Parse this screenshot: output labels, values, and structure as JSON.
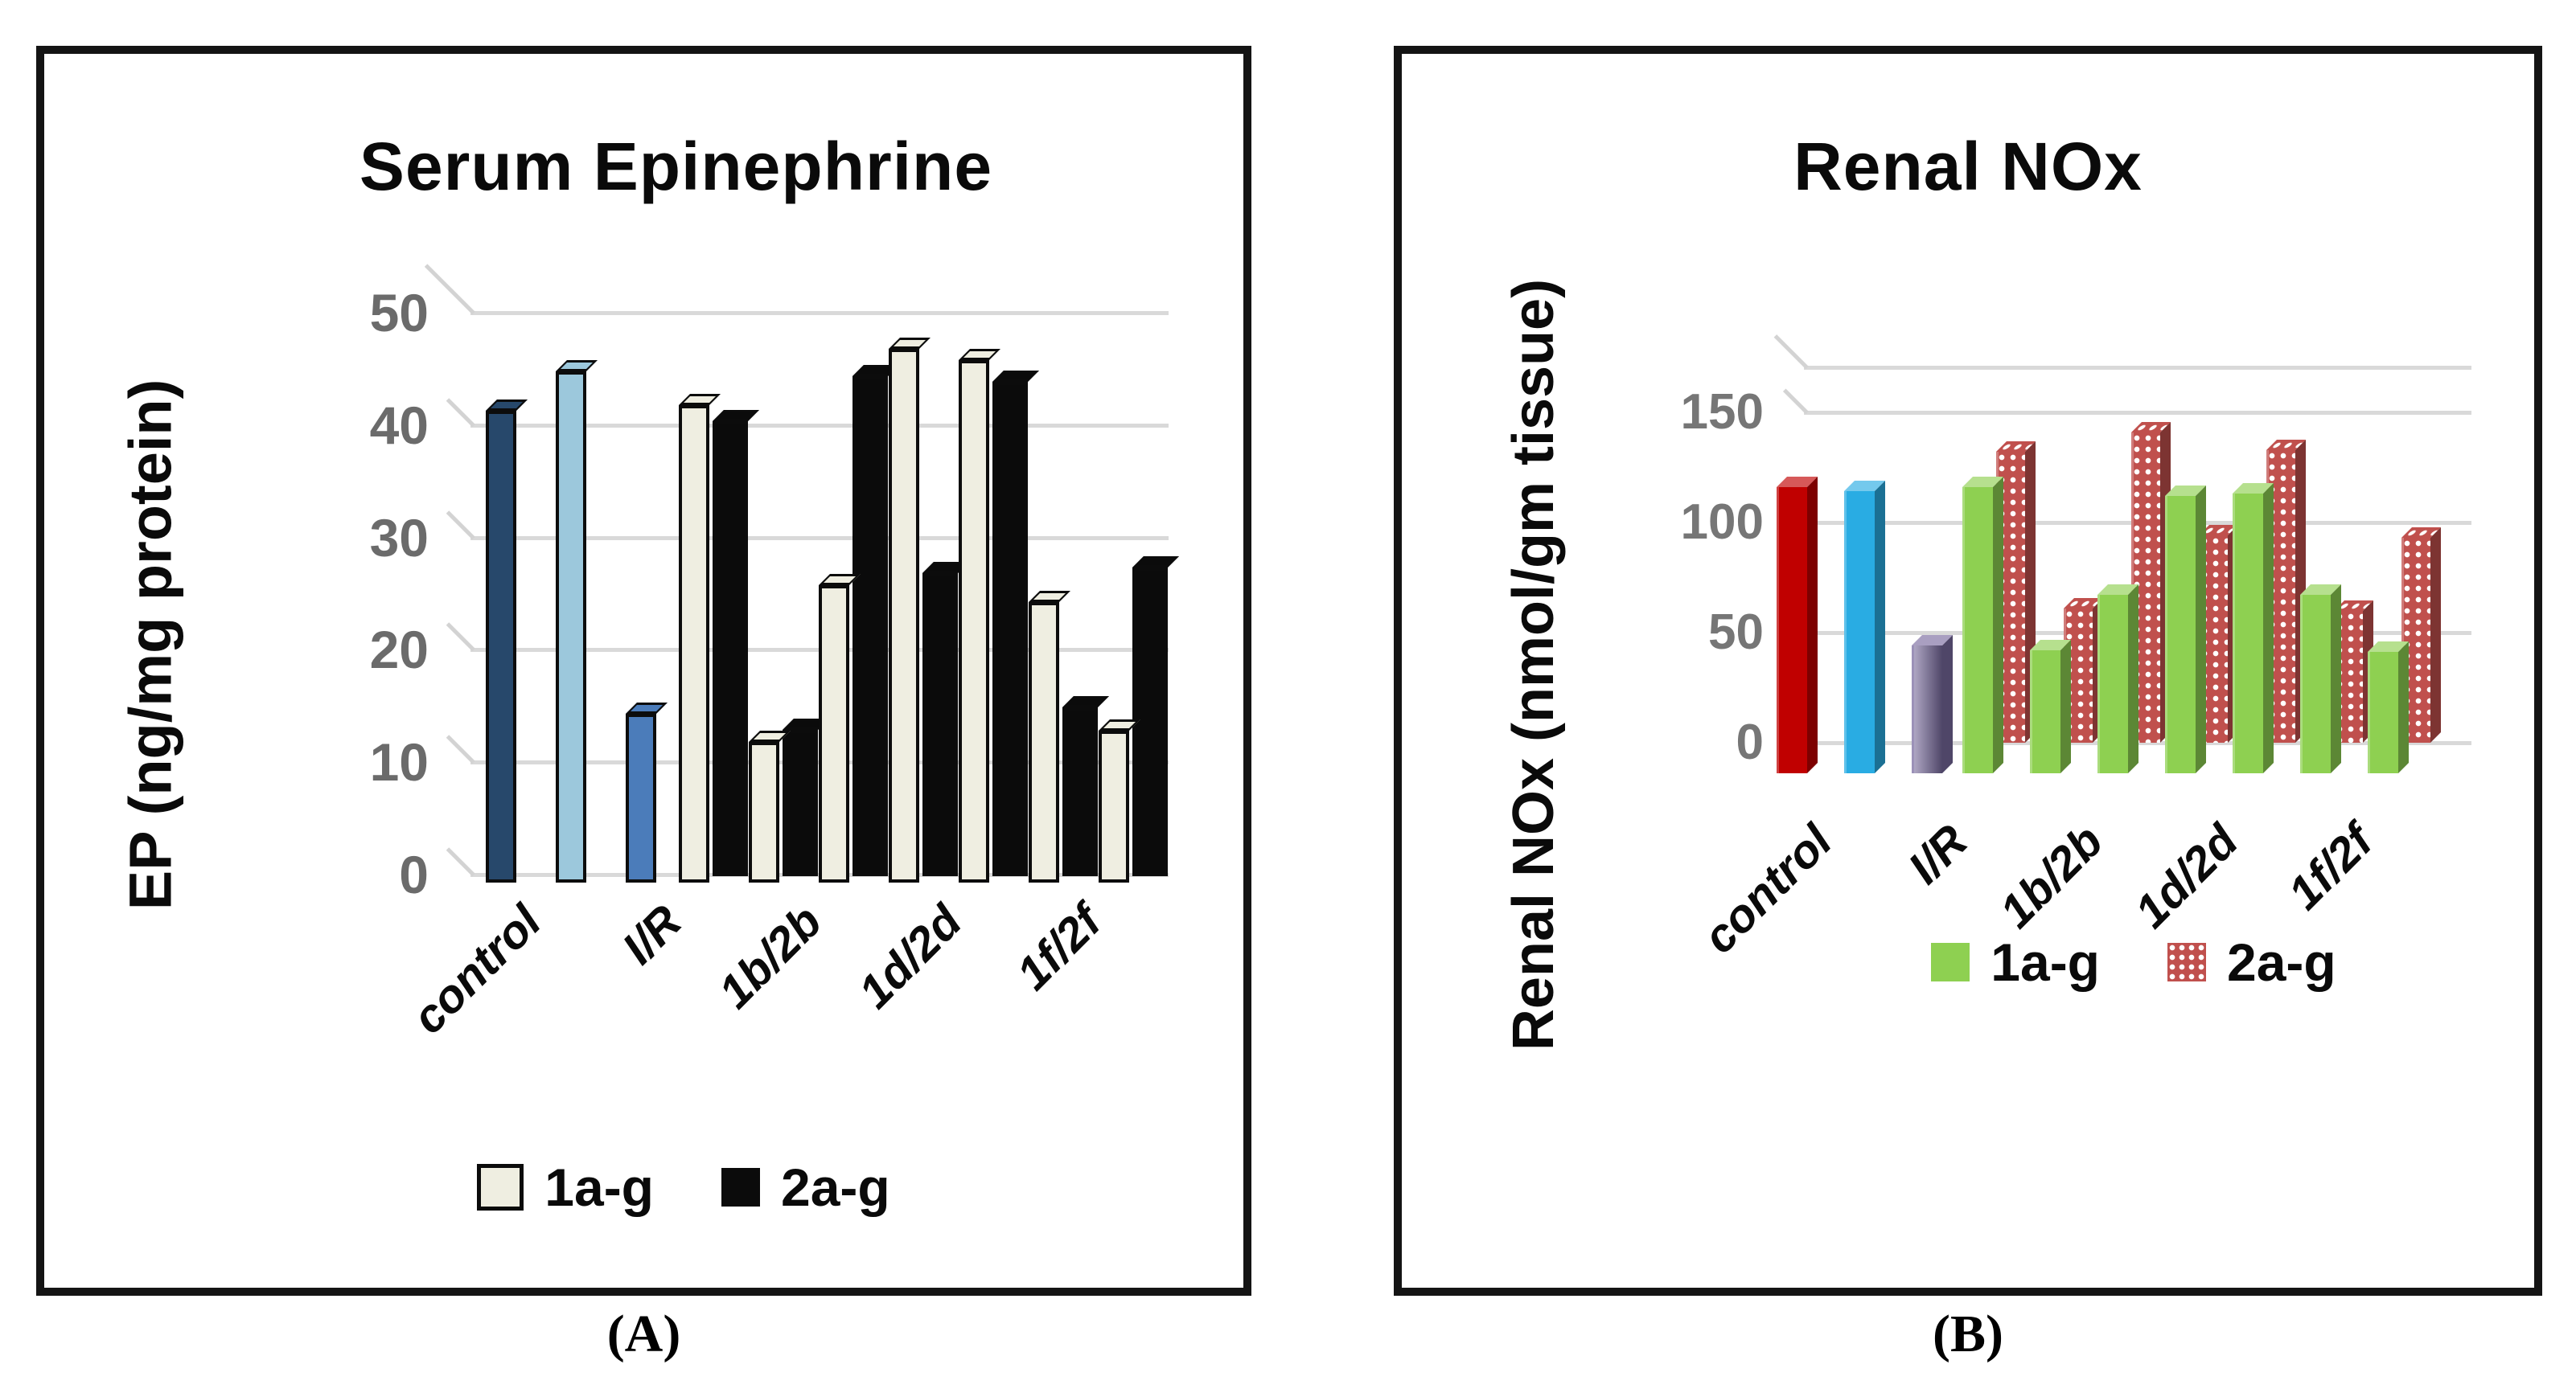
{
  "figure": {
    "caption_a": "(A)",
    "caption_b": "(B)",
    "background": "#ffffff",
    "panel_border_color": "#141414"
  },
  "chart_data": [
    {
      "id": "A",
      "type": "bar",
      "title": "Serum Epinephrine",
      "ylabel": "EP (ng/mg protein)",
      "xlabel": "",
      "ylim": [
        0,
        50
      ],
      "yticks": [
        0,
        10,
        20,
        30,
        40,
        50
      ],
      "grid": true,
      "legend_position": "bottom",
      "caption": "(A)",
      "visible_x_tick_labels": [
        "control",
        "I/R",
        "1b/2b",
        "1d/2d",
        "1f/2f"
      ],
      "legend": [
        {
          "label": "1a-g",
          "swatch_color": "#EFEEE1",
          "swatch_border": "#0b0b0b",
          "dotted": false
        },
        {
          "label": "2a-g",
          "swatch_color": "#0B0B0B",
          "swatch_border": "#0b0b0b",
          "dotted": false
        }
      ],
      "groups": [
        {
          "tick": "control",
          "bars": [
            {
              "series": "control",
              "value": 42,
              "color": "#27486B"
            }
          ]
        },
        {
          "tick": "",
          "bars": [
            {
              "series": "",
              "value": 45.5,
              "color": "#9CC8DC"
            }
          ]
        },
        {
          "tick": "I/R",
          "bars": [
            {
              "series": "I/R",
              "value": 15,
              "color": "#4B7CBA"
            }
          ]
        },
        {
          "tick": "",
          "bars": [
            {
              "series": "1a-g",
              "value": 42.5,
              "color": "#EFEEE1"
            },
            {
              "series": "2a-g",
              "value": 40.5,
              "color": "#0B0B0B"
            }
          ]
        },
        {
          "tick": "1b/2b",
          "bars": [
            {
              "series": "1a-g",
              "value": 12.5,
              "color": "#EFEEE1"
            },
            {
              "series": "2a-g",
              "value": 13,
              "color": "#0B0B0B"
            }
          ]
        },
        {
          "tick": "",
          "bars": [
            {
              "series": "1a-g",
              "value": 26.5,
              "color": "#EFEEE1"
            },
            {
              "series": "2a-g",
              "value": 44.5,
              "color": "#0B0B0B"
            }
          ]
        },
        {
          "tick": "1d/2d",
          "bars": [
            {
              "series": "1a-g",
              "value": 47.5,
              "color": "#EFEEE1"
            },
            {
              "series": "2a-g",
              "value": 27,
              "color": "#0B0B0B"
            }
          ]
        },
        {
          "tick": "",
          "bars": [
            {
              "series": "1a-g",
              "value": 46.5,
              "color": "#EFEEE1"
            },
            {
              "series": "2a-g",
              "value": 44,
              "color": "#0B0B0B"
            }
          ]
        },
        {
          "tick": "1f/2f",
          "bars": [
            {
              "series": "1a-g",
              "value": 25,
              "color": "#EFEEE1"
            },
            {
              "series": "2a-g",
              "value": 15,
              "color": "#0B0B0B"
            }
          ]
        },
        {
          "tick": "",
          "bars": [
            {
              "series": "1a-g",
              "value": 13.5,
              "color": "#EFEEE1"
            },
            {
              "series": "2a-g",
              "value": 27.5,
              "color": "#0B0B0B"
            }
          ]
        }
      ]
    },
    {
      "id": "B",
      "type": "bar",
      "title": "Renal NOx",
      "ylabel": "Renal NOx (nmol/gm tissue)",
      "xlabel": "",
      "ylim": [
        0,
        150
      ],
      "yticks": [
        0,
        50,
        100,
        150
      ],
      "grid": true,
      "legend_position": "bottom",
      "caption": "(B)",
      "visible_x_tick_labels": [
        "control",
        "I/R",
        "1b/2b",
        "1d/2d",
        "1f/2f"
      ],
      "legend": [
        {
          "label": "1a-g",
          "swatch_color": "#8ED051",
          "swatch_border": "none",
          "dotted": false
        },
        {
          "label": "2a-g",
          "swatch_color": "#C0504D",
          "swatch_border": "none",
          "dotted": true
        }
      ],
      "groups": [
        {
          "tick": "control",
          "bars": [
            {
              "series": "control",
              "value": 130,
              "color": "#C00000"
            }
          ]
        },
        {
          "tick": "",
          "bars": [
            {
              "series": "",
              "value": 128,
              "color": "#29ACE3"
            }
          ]
        },
        {
          "tick": "I/R",
          "bars": [
            {
              "series": "I/R",
              "value": 58,
              "color": "#7A6CA0",
              "gradient": true
            }
          ]
        },
        {
          "tick": "",
          "bars": [
            {
              "series": "1a-g",
              "value": 130,
              "color": "#8ED051"
            },
            {
              "series": "2a-g",
              "value": 132,
              "color": "#C0504D",
              "dotted": true
            }
          ]
        },
        {
          "tick": "1b/2b",
          "bars": [
            {
              "series": "1a-g",
              "value": 56,
              "color": "#8ED051"
            },
            {
              "series": "2a-g",
              "value": 61,
              "color": "#C0504D",
              "dotted": true
            }
          ]
        },
        {
          "tick": "",
          "bars": [
            {
              "series": "1a-g",
              "value": 81,
              "color": "#8ED051"
            },
            {
              "series": "2a-g",
              "value": 141,
              "color": "#C0504D",
              "dotted": true
            }
          ]
        },
        {
          "tick": "1d/2d",
          "bars": [
            {
              "series": "1a-g",
              "value": 126,
              "color": "#8ED051"
            },
            {
              "series": "2a-g",
              "value": 94,
              "color": "#C0504D",
              "dotted": true
            }
          ]
        },
        {
          "tick": "",
          "bars": [
            {
              "series": "1a-g",
              "value": 127,
              "color": "#8ED051"
            },
            {
              "series": "2a-g",
              "value": 133,
              "color": "#C0504D",
              "dotted": true
            }
          ]
        },
        {
          "tick": "1f/2f",
          "bars": [
            {
              "series": "1a-g",
              "value": 81,
              "color": "#8ED051"
            },
            {
              "series": "2a-g",
              "value": 60,
              "color": "#C0504D",
              "dotted": true
            }
          ]
        },
        {
          "tick": "",
          "bars": [
            {
              "series": "1a-g",
              "value": 55,
              "color": "#8ED051"
            },
            {
              "series": "2a-g",
              "value": 93,
              "color": "#C0504D",
              "dotted": true
            }
          ]
        }
      ]
    }
  ]
}
